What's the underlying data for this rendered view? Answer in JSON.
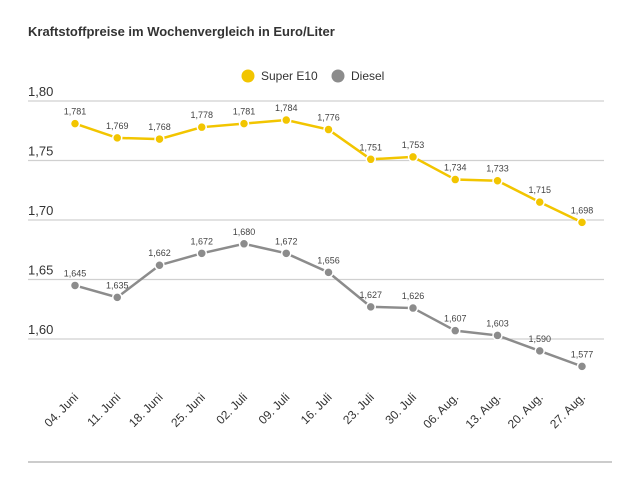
{
  "chart_data": {
    "type": "line",
    "title": "Kraftstoffpreise im Wochenvergleich in Euro/Liter",
    "categories": [
      "04. Juni",
      "11. Juni",
      "18. Juni",
      "25. Juni",
      "02. Juli",
      "09. Juli",
      "16. Juli",
      "23. Juli",
      "30. Juli",
      "06. Aug.",
      "13. Aug.",
      "20. Aug.",
      "27. Aug."
    ],
    "series": [
      {
        "name": "Super E10",
        "color": "#f2c500",
        "values": [
          1.781,
          1.769,
          1.768,
          1.778,
          1.781,
          1.784,
          1.776,
          1.751,
          1.753,
          1.734,
          1.733,
          1.715,
          1.698
        ],
        "value_labels": [
          "1,781",
          "1,769",
          "1,768",
          "1,778",
          "1,781",
          "1,784",
          "1,776",
          "1,751",
          "1,753",
          "1,734",
          "1,733",
          "1,715",
          "1,698"
        ]
      },
      {
        "name": "Diesel",
        "color": "#8c8c8c",
        "values": [
          1.645,
          1.635,
          1.662,
          1.672,
          1.68,
          1.672,
          1.656,
          1.627,
          1.626,
          1.607,
          1.603,
          1.59,
          1.577
        ],
        "value_labels": [
          "1,645",
          "1,635",
          "1,662",
          "1,672",
          "1,680",
          "1,672",
          "1,656",
          "1,627",
          "1,626",
          "1,607",
          "1,603",
          "1,590",
          "1,577"
        ]
      }
    ],
    "ylim": [
      1.56,
      1.8
    ],
    "yticks": [
      {
        "value": 1.6,
        "label": "1,60"
      },
      {
        "value": 1.65,
        "label": "1,65"
      },
      {
        "value": 1.7,
        "label": "1,70"
      },
      {
        "value": 1.75,
        "label": "1,75"
      },
      {
        "value": 1.8,
        "label": "1,80"
      }
    ],
    "grid": true,
    "legend": "top"
  }
}
